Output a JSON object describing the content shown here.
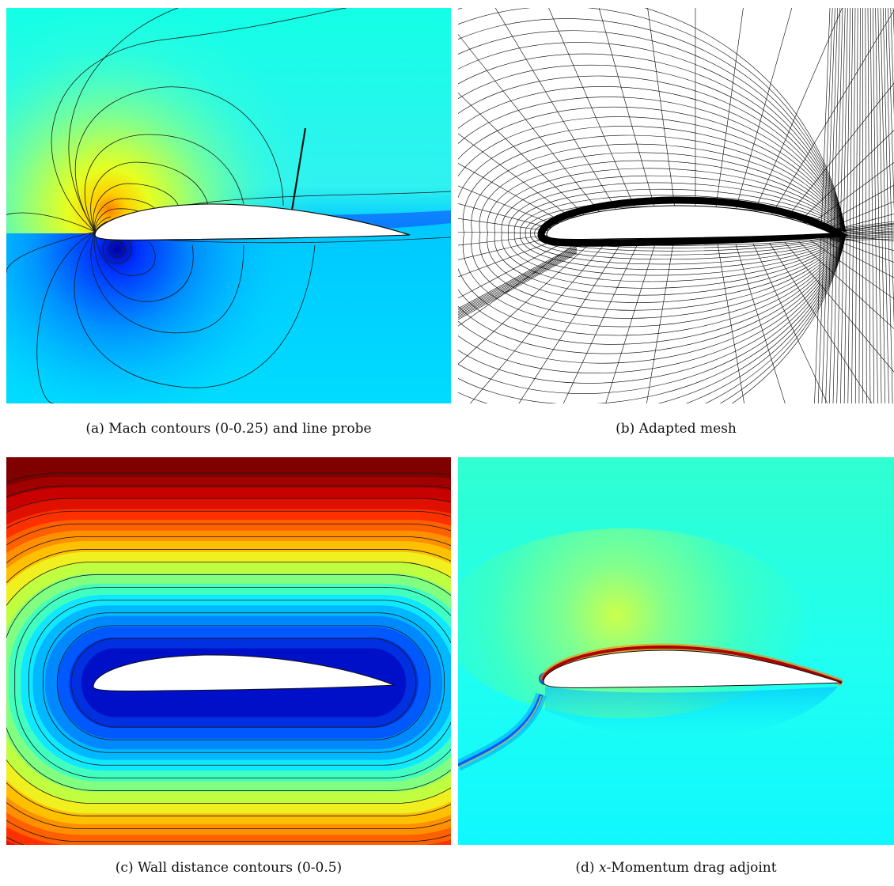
{
  "figure": {
    "panels": [
      {
        "label": "(a)",
        "caption": "Mach contours (0-0.25) and line probe",
        "colormap": "jet"
      },
      {
        "label": "(b)",
        "caption": "Adapted mesh",
        "colormap": "none"
      },
      {
        "label": "(c)",
        "caption": "Wall distance contours (0-0.5)",
        "colormap": "jet"
      },
      {
        "label": "(d)",
        "caption_var": "x",
        "caption": "-Momentum drag adjoint",
        "colormap": "jet"
      }
    ]
  },
  "colors": {
    "jet_dark_blue": "#0000c8",
    "jet_blue": "#0050ff",
    "jet_cyan": "#00f0ff",
    "jet_green": "#50ffa0",
    "jet_yellow": "#f0ff20",
    "jet_orange": "#ff8000",
    "jet_red": "#e01000",
    "jet_dark_red": "#800000",
    "contour_line": "#1a1a1a",
    "airfoil": "#ffffff"
  }
}
